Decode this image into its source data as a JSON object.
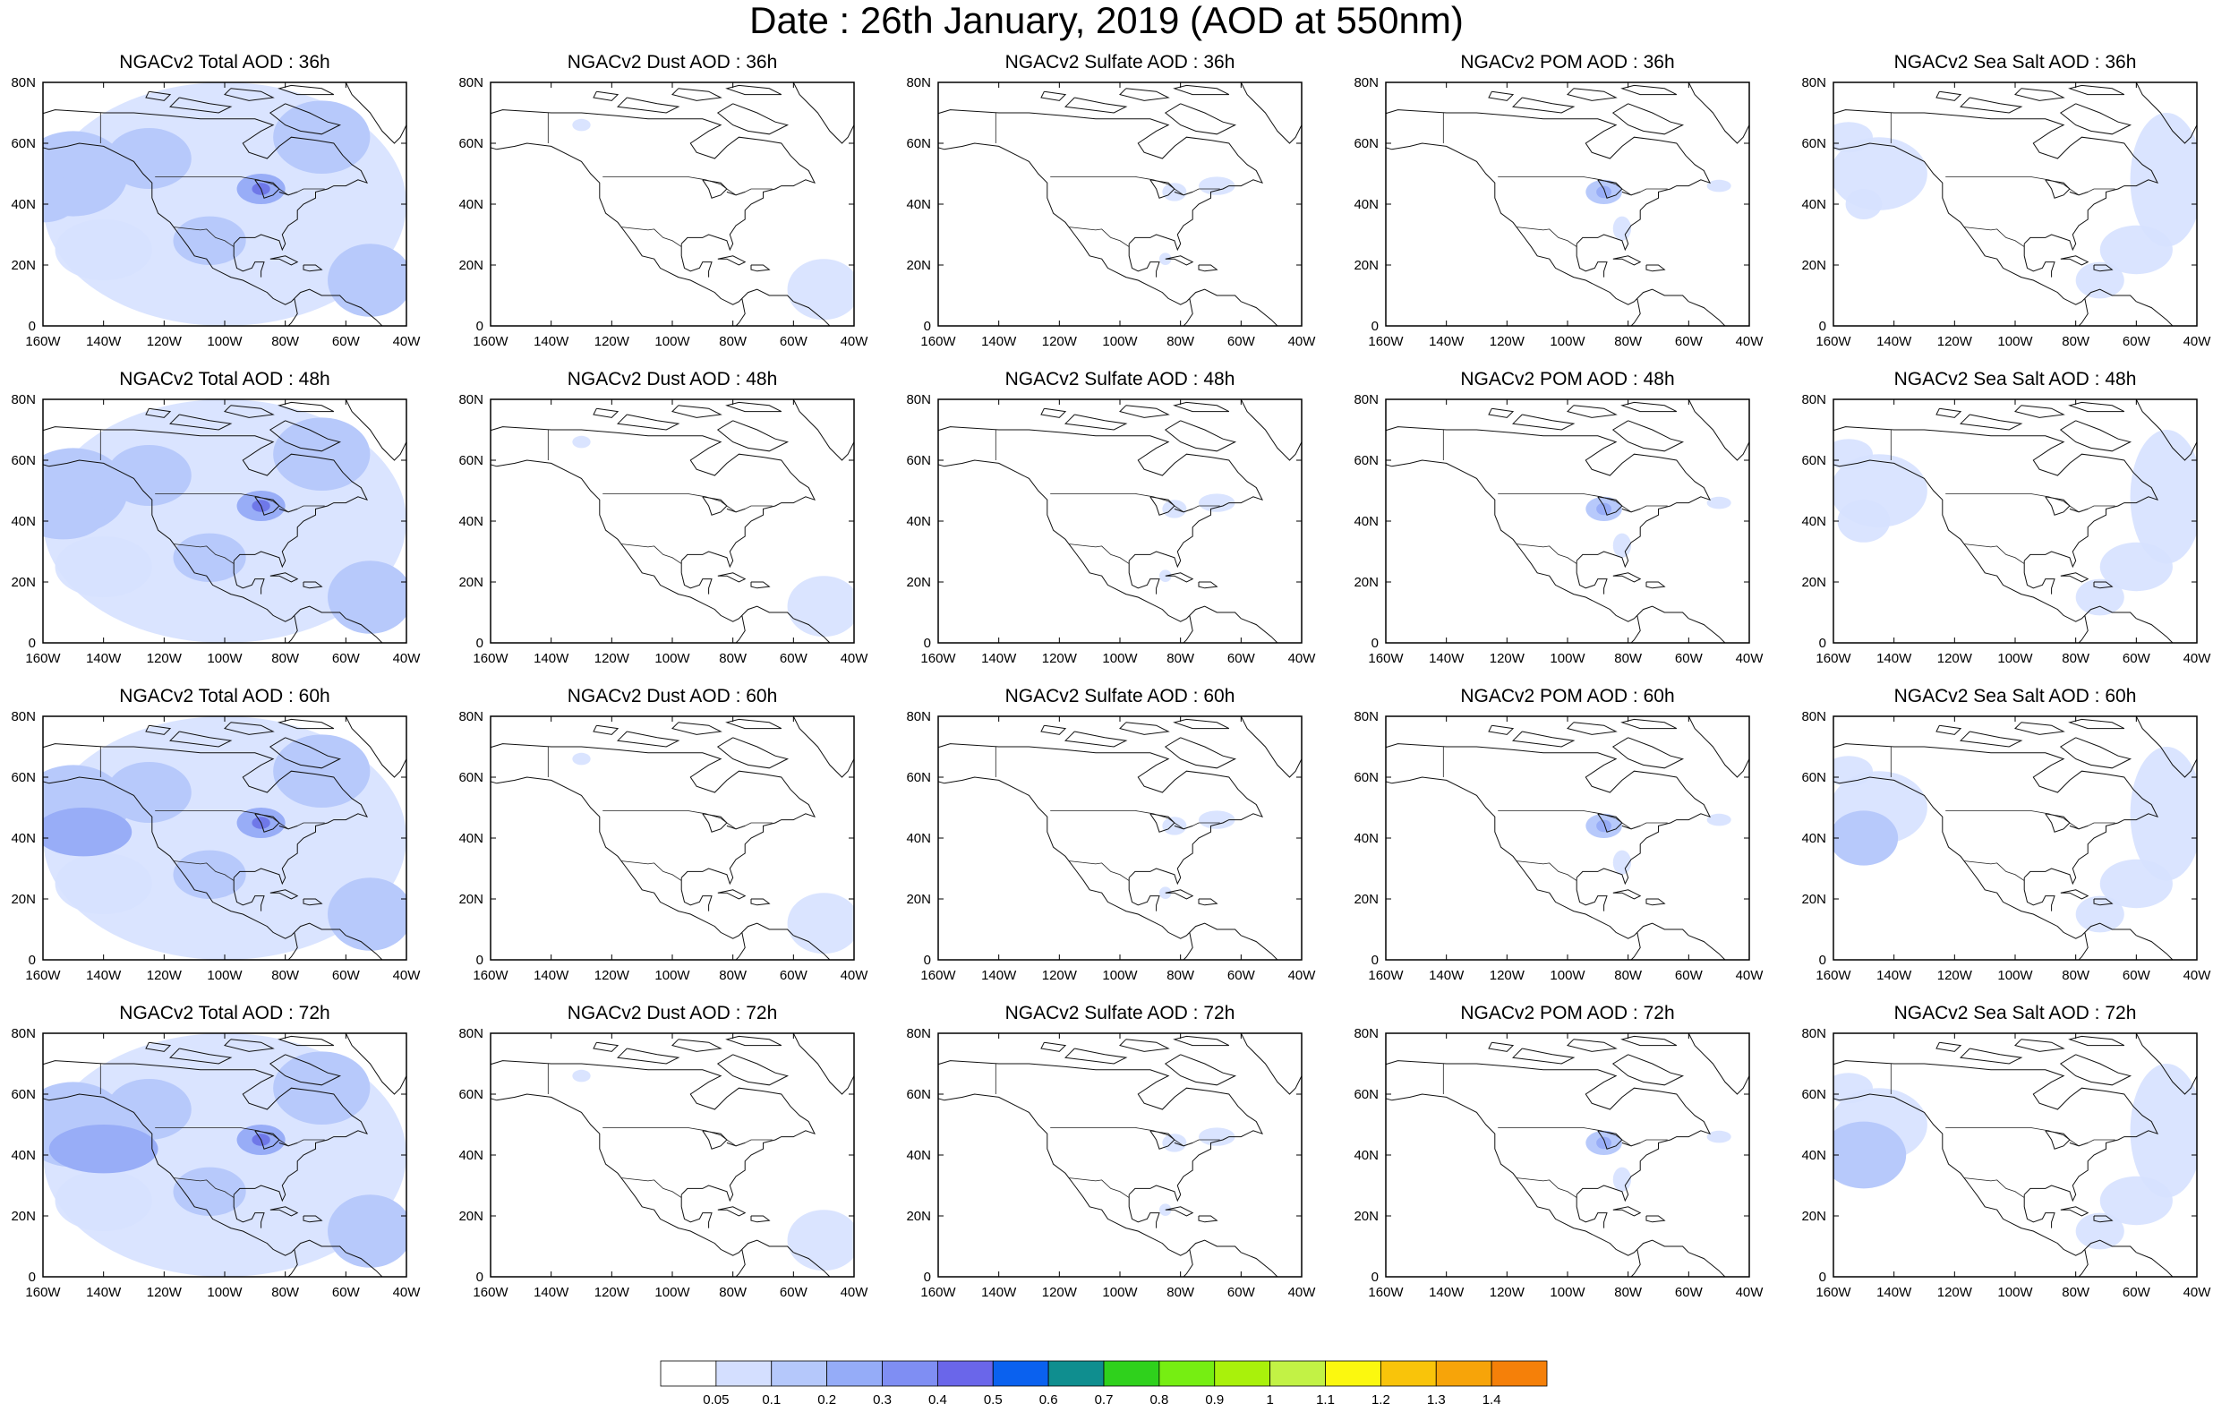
{
  "title": "Date : 26th January, 2019 (AOD at 550nm)",
  "x_ticks": [
    "160W",
    "140W",
    "120W",
    "100W",
    "80W",
    "60W",
    "40W"
  ],
  "y_ticks": [
    "80N",
    "60N",
    "40N",
    "20N",
    "0"
  ],
  "panels": [
    {
      "title": "NGACv2 Total AOD : 36h",
      "species": "total",
      "hour": 36
    },
    {
      "title": "NGACv2 Dust AOD : 36h",
      "species": "dust",
      "hour": 36
    },
    {
      "title": "NGACv2 Sulfate AOD : 36h",
      "species": "sulfate",
      "hour": 36
    },
    {
      "title": "NGACv2 POM AOD : 36h",
      "species": "pom",
      "hour": 36
    },
    {
      "title": "NGACv2 Sea Salt AOD : 36h",
      "species": "seasalt",
      "hour": 36
    },
    {
      "title": "NGACv2 Total AOD : 48h",
      "species": "total",
      "hour": 48
    },
    {
      "title": "NGACv2 Dust AOD : 48h",
      "species": "dust",
      "hour": 48
    },
    {
      "title": "NGACv2 Sulfate AOD : 48h",
      "species": "sulfate",
      "hour": 48
    },
    {
      "title": "NGACv2 POM AOD : 48h",
      "species": "pom",
      "hour": 48
    },
    {
      "title": "NGACv2 Sea Salt AOD : 48h",
      "species": "seasalt",
      "hour": 48
    },
    {
      "title": "NGACv2 Total AOD : 60h",
      "species": "total",
      "hour": 60
    },
    {
      "title": "NGACv2 Dust AOD : 60h",
      "species": "dust",
      "hour": 60
    },
    {
      "title": "NGACv2 Sulfate AOD : 60h",
      "species": "sulfate",
      "hour": 60
    },
    {
      "title": "NGACv2 POM AOD : 60h",
      "species": "pom",
      "hour": 60
    },
    {
      "title": "NGACv2 Sea Salt AOD : 60h",
      "species": "seasalt",
      "hour": 60
    },
    {
      "title": "NGACv2 Total AOD : 72h",
      "species": "total",
      "hour": 72
    },
    {
      "title": "NGACv2 Dust AOD : 72h",
      "species": "dust",
      "hour": 72
    },
    {
      "title": "NGACv2 Sulfate AOD : 72h",
      "species": "sulfate",
      "hour": 72
    },
    {
      "title": "NGACv2 POM AOD : 72h",
      "species": "pom",
      "hour": 72
    },
    {
      "title": "NGACv2 Sea Salt  AOD : 72h",
      "species": "seasalt",
      "hour": 72
    }
  ],
  "colorbar": {
    "labels": [
      "0.05",
      "0.1",
      "0.2",
      "0.3",
      "0.4",
      "0.5",
      "0.6",
      "0.7",
      "0.8",
      "0.9",
      "1",
      "1.1",
      "1.2",
      "1.3",
      "1.4"
    ],
    "colors": [
      "#ffffff",
      "#d4dfff",
      "#b5c8fb",
      "#95acf8",
      "#7f8ef3",
      "#6a66ea",
      "#0a61ef",
      "#0f8e8f",
      "#2fd11c",
      "#76ee12",
      "#a9f10b",
      "#c2f245",
      "#fbf80f",
      "#f9c40a",
      "#f7a409",
      "#f58009",
      "#f44d09"
    ]
  },
  "chart_data": {
    "type": "heatmap",
    "description_units": "AOD at 550nm",
    "region": {
      "lon": [
        -160,
        -40
      ],
      "lat": [
        0,
        80
      ]
    },
    "forecast_hours": [
      36,
      48,
      60,
      72
    ],
    "species": [
      "Total",
      "Dust",
      "Sulfate",
      "POM",
      "Sea Salt"
    ],
    "levels": [
      0.05,
      0.1,
      0.2,
      0.3,
      0.4,
      0.5,
      0.6,
      0.7,
      0.8,
      0.9,
      1,
      1.1,
      1.2,
      1.3,
      1.4
    ]
  }
}
